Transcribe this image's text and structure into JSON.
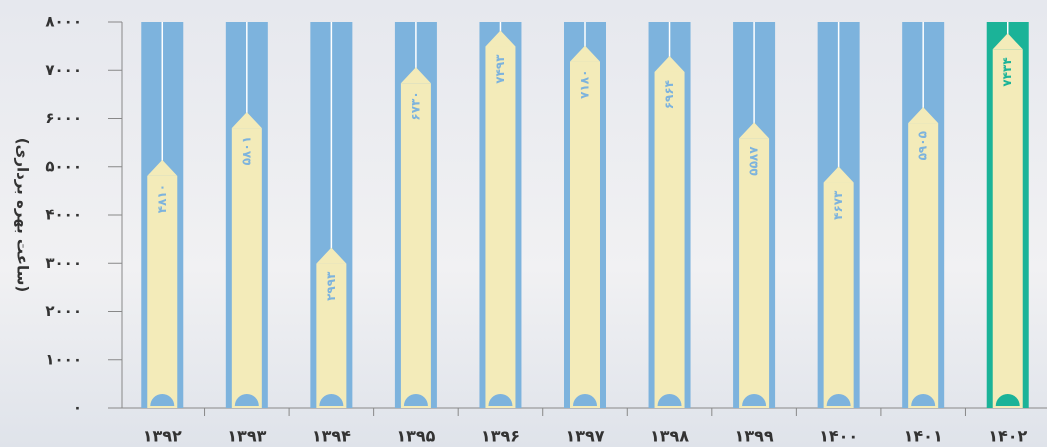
{
  "chart_data": {
    "type": "bar",
    "y_axis_label": "(ساعت بهره برداری)",
    "categories": [
      "۱۳۹۲",
      "۱۳۹۳",
      "۱۳۹۴",
      "۱۳۹۵",
      "۱۳۹۶",
      "۱۳۹۷",
      "۱۳۹۸",
      "۱۳۹۹",
      "۱۴۰۰",
      "۱۴۰۱",
      "۱۴۰۲"
    ],
    "values": [
      4810,
      5801,
      2993,
      6730,
      7493,
      7180,
      6964,
      5587,
      4673,
      5905,
      7434
    ],
    "value_labels": [
      "۴۸۱۰",
      "۵۸۰۱",
      "۲۹۹۳",
      "۶۷۳۰",
      "۷۴۹۳",
      "۷۱۸۰",
      "۶۹۶۴",
      "۵۵۸۷",
      "۴۶۷۳",
      "۵۹۰۵",
      "۷۴۳۴"
    ],
    "color": "#f3ebb9",
    "column_colors": [
      "#7db3dd",
      "#7db3dd",
      "#7db3dd",
      "#7db3dd",
      "#7db3dd",
      "#7db3dd",
      "#7db3dd",
      "#7db3dd",
      "#7db3dd",
      "#7db3dd",
      "#1bb398"
    ],
    "ylim": [
      0,
      8000
    ],
    "yticks": [
      {
        "value": 0,
        "label": "۰"
      },
      {
        "value": 1000,
        "label": "۱۰۰۰"
      },
      {
        "value": 2000,
        "label": "۲۰۰۰"
      },
      {
        "value": 3000,
        "label": "۳۰۰۰"
      },
      {
        "value": 4000,
        "label": "۴۰۰۰"
      },
      {
        "value": 5000,
        "label": "۵۰۰۰"
      },
      {
        "value": 6000,
        "label": "۶۰۰۰"
      },
      {
        "value": 7000,
        "label": "۷۰۰۰"
      },
      {
        "value": 8000,
        "label": "۸۰۰۰"
      }
    ]
  }
}
